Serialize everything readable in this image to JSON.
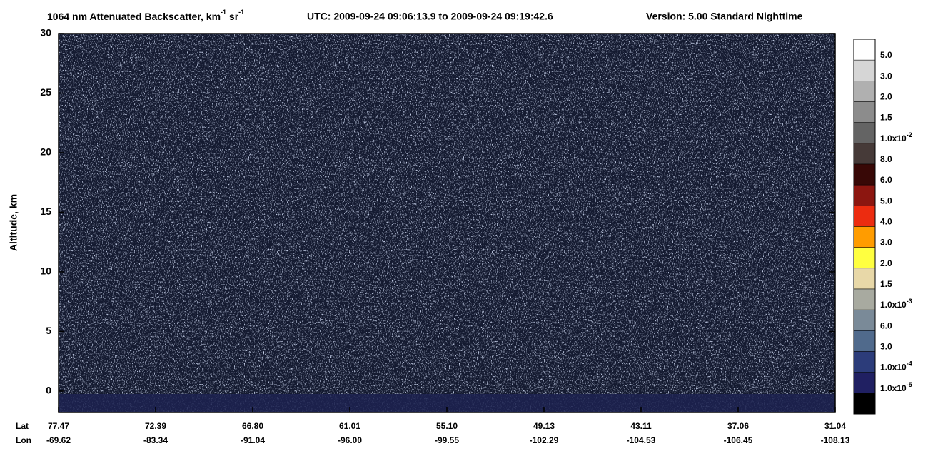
{
  "chart_data": {
    "type": "heatmap",
    "title_parts": [
      "1064 nm Attenuated Backscatter, km",
      "-1",
      " sr",
      "-1"
    ],
    "subtitle": "UTC:  2009-09-24 09:06:13.9  to  2009-09-24 09:19:42.6",
    "version": "Version: 5.00  Standard  Nighttime",
    "ylabel": "Altitude, km",
    "ylim": [
      -1.8,
      30
    ],
    "yticks": [
      0,
      5,
      10,
      15,
      20,
      25,
      30
    ],
    "x_rows": [
      {
        "label": "Lat",
        "ticks": [
          "77.47",
          "72.39",
          "66.80",
          "61.01",
          "55.10",
          "49.13",
          "43.11",
          "37.06",
          "31.04"
        ]
      },
      {
        "label": "Lon",
        "ticks": [
          "-69.62",
          "-83.34",
          "-91.04",
          "-96.00",
          "-99.55",
          "-102.29",
          "-104.53",
          "-106.45",
          "-108.13"
        ]
      }
    ],
    "colorbar": [
      {
        "color": "#ffffff",
        "label": "5.0"
      },
      {
        "color": "#d6d6d6",
        "label": "3.0"
      },
      {
        "color": "#b0b0b0",
        "label": "2.0"
      },
      {
        "color": "#8c8c8c",
        "label": "1.5"
      },
      {
        "color": "#646464",
        "label": "1.0x10",
        "exp": "-2"
      },
      {
        "color": "#463a38",
        "label": "8.0"
      },
      {
        "color": "#380806",
        "label": "6.0"
      },
      {
        "color": "#8c1610",
        "label": "5.0"
      },
      {
        "color": "#ec2c10",
        "label": "4.0"
      },
      {
        "color": "#ff9c00",
        "label": "3.0"
      },
      {
        "color": "#ffff40",
        "label": "2.0"
      },
      {
        "color": "#e8d8a8",
        "label": "1.5"
      },
      {
        "color": "#a8aaa0",
        "label": "1.0x10",
        "exp": "-3"
      },
      {
        "color": "#7a8a98",
        "label": "6.0"
      },
      {
        "color": "#506a8c",
        "label": "3.0"
      },
      {
        "color": "#2c3c7a",
        "label": "1.0x10",
        "exp": "-4"
      },
      {
        "color": "#202062",
        "label": "1.0x10",
        "exp": "-5"
      },
      {
        "color": "#000000"
      }
    ]
  }
}
